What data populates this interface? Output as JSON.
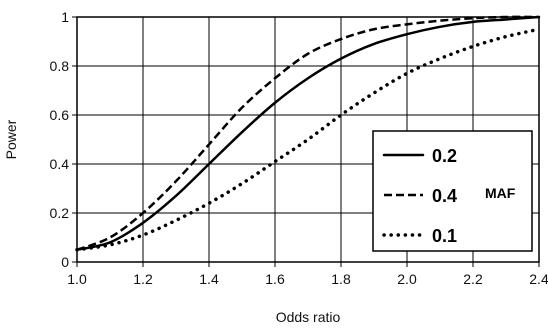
{
  "chart_data": {
    "type": "line",
    "title": "",
    "xlabel": "Odds ratio",
    "ylabel": "Power",
    "xlim": [
      1.0,
      2.4
    ],
    "ylim": [
      0,
      1
    ],
    "x_ticks": [
      "1.0",
      "1.2",
      "1.4",
      "1.6",
      "1.8",
      "2.0",
      "2.2",
      "2.4"
    ],
    "y_ticks": [
      "0",
      "0.2",
      "0.4",
      "0.6",
      "0.8",
      "1"
    ],
    "grid": true,
    "legend_position": "right",
    "legend_annotation": "MAF",
    "series": [
      {
        "name": "0.2",
        "style": "solid",
        "color": "#000000",
        "points": [
          [
            1.0,
            0.05
          ],
          [
            1.1,
            0.08
          ],
          [
            1.2,
            0.16
          ],
          [
            1.3,
            0.27
          ],
          [
            1.4,
            0.4
          ],
          [
            1.5,
            0.53
          ],
          [
            1.6,
            0.65
          ],
          [
            1.7,
            0.75
          ],
          [
            1.8,
            0.83
          ],
          [
            1.9,
            0.89
          ],
          [
            2.0,
            0.93
          ],
          [
            2.1,
            0.96
          ],
          [
            2.2,
            0.98
          ],
          [
            2.3,
            0.99
          ],
          [
            2.4,
            1.0
          ]
        ]
      },
      {
        "name": "0.4",
        "style": "dashed",
        "color": "#000000",
        "points": [
          [
            1.0,
            0.05
          ],
          [
            1.1,
            0.1
          ],
          [
            1.2,
            0.2
          ],
          [
            1.3,
            0.33
          ],
          [
            1.4,
            0.48
          ],
          [
            1.5,
            0.63
          ],
          [
            1.6,
            0.75
          ],
          [
            1.7,
            0.85
          ],
          [
            1.8,
            0.91
          ],
          [
            1.9,
            0.95
          ],
          [
            2.0,
            0.97
          ],
          [
            2.1,
            0.985
          ],
          [
            2.2,
            0.995
          ],
          [
            2.3,
            1.0
          ],
          [
            2.4,
            1.0
          ]
        ]
      },
      {
        "name": "0.1",
        "style": "dotted",
        "color": "#000000",
        "points": [
          [
            1.0,
            0.05
          ],
          [
            1.1,
            0.07
          ],
          [
            1.2,
            0.11
          ],
          [
            1.3,
            0.17
          ],
          [
            1.4,
            0.24
          ],
          [
            1.5,
            0.32
          ],
          [
            1.6,
            0.41
          ],
          [
            1.7,
            0.5
          ],
          [
            1.8,
            0.6
          ],
          [
            1.9,
            0.69
          ],
          [
            2.0,
            0.77
          ],
          [
            2.1,
            0.83
          ],
          [
            2.2,
            0.88
          ],
          [
            2.3,
            0.92
          ],
          [
            2.4,
            0.95
          ]
        ]
      }
    ]
  }
}
